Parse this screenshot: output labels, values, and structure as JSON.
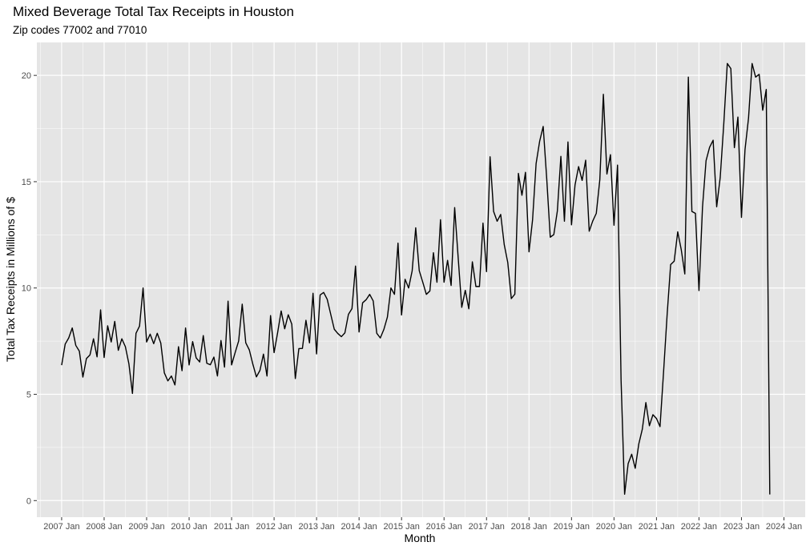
{
  "chart_data": {
    "type": "line",
    "title": "Mixed Beverage Total Tax Receipts in Houston",
    "subtitle": "Zip codes 77002 and 77010",
    "xlabel": "Month",
    "ylabel": "Total Tax Receipts in Millions of $",
    "x_start": "2007-01",
    "x_ticks": [
      {
        "date": "2007-01",
        "label": "2007 Jan"
      },
      {
        "date": "2008-01",
        "label": "2008 Jan"
      },
      {
        "date": "2009-01",
        "label": "2009 Jan"
      },
      {
        "date": "2010-01",
        "label": "2010 Jan"
      },
      {
        "date": "2011-01",
        "label": "2011 Jan"
      },
      {
        "date": "2012-01",
        "label": "2012 Jan"
      },
      {
        "date": "2013-01",
        "label": "2013 Jan"
      },
      {
        "date": "2014-01",
        "label": "2014 Jan"
      },
      {
        "date": "2015-01",
        "label": "2015 Jan"
      },
      {
        "date": "2016-01",
        "label": "2016 Jan"
      },
      {
        "date": "2017-01",
        "label": "2017 Jan"
      },
      {
        "date": "2018-01",
        "label": "2018 Jan"
      },
      {
        "date": "2019-01",
        "label": "2019 Jan"
      },
      {
        "date": "2020-01",
        "label": "2020 Jan"
      },
      {
        "date": "2021-01",
        "label": "2021 Jan"
      },
      {
        "date": "2022-01",
        "label": "2022 Jan"
      },
      {
        "date": "2023-01",
        "label": "2023 Jan"
      },
      {
        "date": "2024-01",
        "label": "2024 Jan"
      }
    ],
    "y_ticks": [
      0,
      5,
      10,
      15,
      20
    ],
    "ylim": [
      -0.78,
      21.55
    ],
    "xlim": [
      "2006-06",
      "2024-07"
    ],
    "grid": true,
    "legend": "none",
    "colors": {
      "panel": "#e5e5e5",
      "grid": "#ffffff",
      "line": "#000000"
    },
    "values": [
      6.37,
      7.36,
      7.65,
      8.12,
      7.3,
      7.03,
      5.81,
      6.68,
      6.85,
      7.61,
      6.76,
      8.97,
      6.73,
      8.22,
      7.46,
      8.43,
      7.07,
      7.61,
      7.24,
      6.43,
      5.04,
      7.87,
      8.21,
      10.0,
      7.46,
      7.83,
      7.38,
      7.87,
      7.41,
      6.01,
      5.63,
      5.86,
      5.44,
      7.24,
      6.11,
      8.12,
      6.38,
      7.48,
      6.71,
      6.52,
      7.76,
      6.46,
      6.39,
      6.75,
      5.86,
      7.53,
      6.28,
      9.38,
      6.38,
      6.96,
      7.51,
      9.24,
      7.42,
      7.09,
      6.42,
      5.82,
      6.12,
      6.89,
      5.86,
      8.7,
      6.96,
      7.9,
      8.92,
      8.08,
      8.74,
      8.3,
      5.74,
      7.15,
      7.16,
      8.48,
      7.42,
      9.75,
      6.9,
      9.67,
      9.79,
      9.47,
      8.76,
      8.06,
      7.86,
      7.71,
      7.89,
      8.76,
      9.03,
      11.03,
      7.93,
      9.3,
      9.45,
      9.7,
      9.39,
      7.87,
      7.65,
      8.05,
      8.63,
      10.0,
      9.7,
      12.11,
      8.73,
      10.41,
      10.0,
      10.81,
      12.83,
      10.81,
      10.27,
      9.7,
      9.86,
      11.66,
      10.27,
      13.21,
      10.27,
      11.3,
      10.12,
      13.78,
      11.41,
      9.09,
      9.89,
      9.02,
      11.23,
      10.07,
      10.07,
      13.05,
      10.77,
      16.17,
      13.6,
      13.14,
      13.46,
      12.04,
      11.2,
      9.5,
      9.71,
      15.39,
      14.36,
      15.44,
      11.7,
      13.2,
      15.85,
      16.9,
      17.6,
      15.14,
      12.39,
      12.51,
      13.62,
      16.19,
      13.14,
      16.87,
      12.97,
      14.85,
      15.71,
      15.06,
      16.01,
      12.67,
      13.15,
      13.51,
      15.1,
      19.11,
      15.36,
      16.27,
      12.95,
      15.78,
      5.67,
      0.3,
      1.74,
      2.18,
      1.52,
      2.66,
      3.36,
      4.61,
      3.52,
      4.04,
      3.86,
      3.48,
      6.05,
      8.73,
      11.1,
      11.26,
      12.64,
      11.8,
      10.66,
      19.92,
      13.6,
      13.51,
      9.88,
      13.81,
      15.99,
      16.62,
      16.95,
      13.82,
      15.2,
      17.7,
      20.56,
      20.32,
      16.6,
      18.04,
      13.32,
      16.5,
      18.0,
      20.56,
      19.92,
      20.05,
      18.36,
      19.34,
      0.29
    ]
  }
}
